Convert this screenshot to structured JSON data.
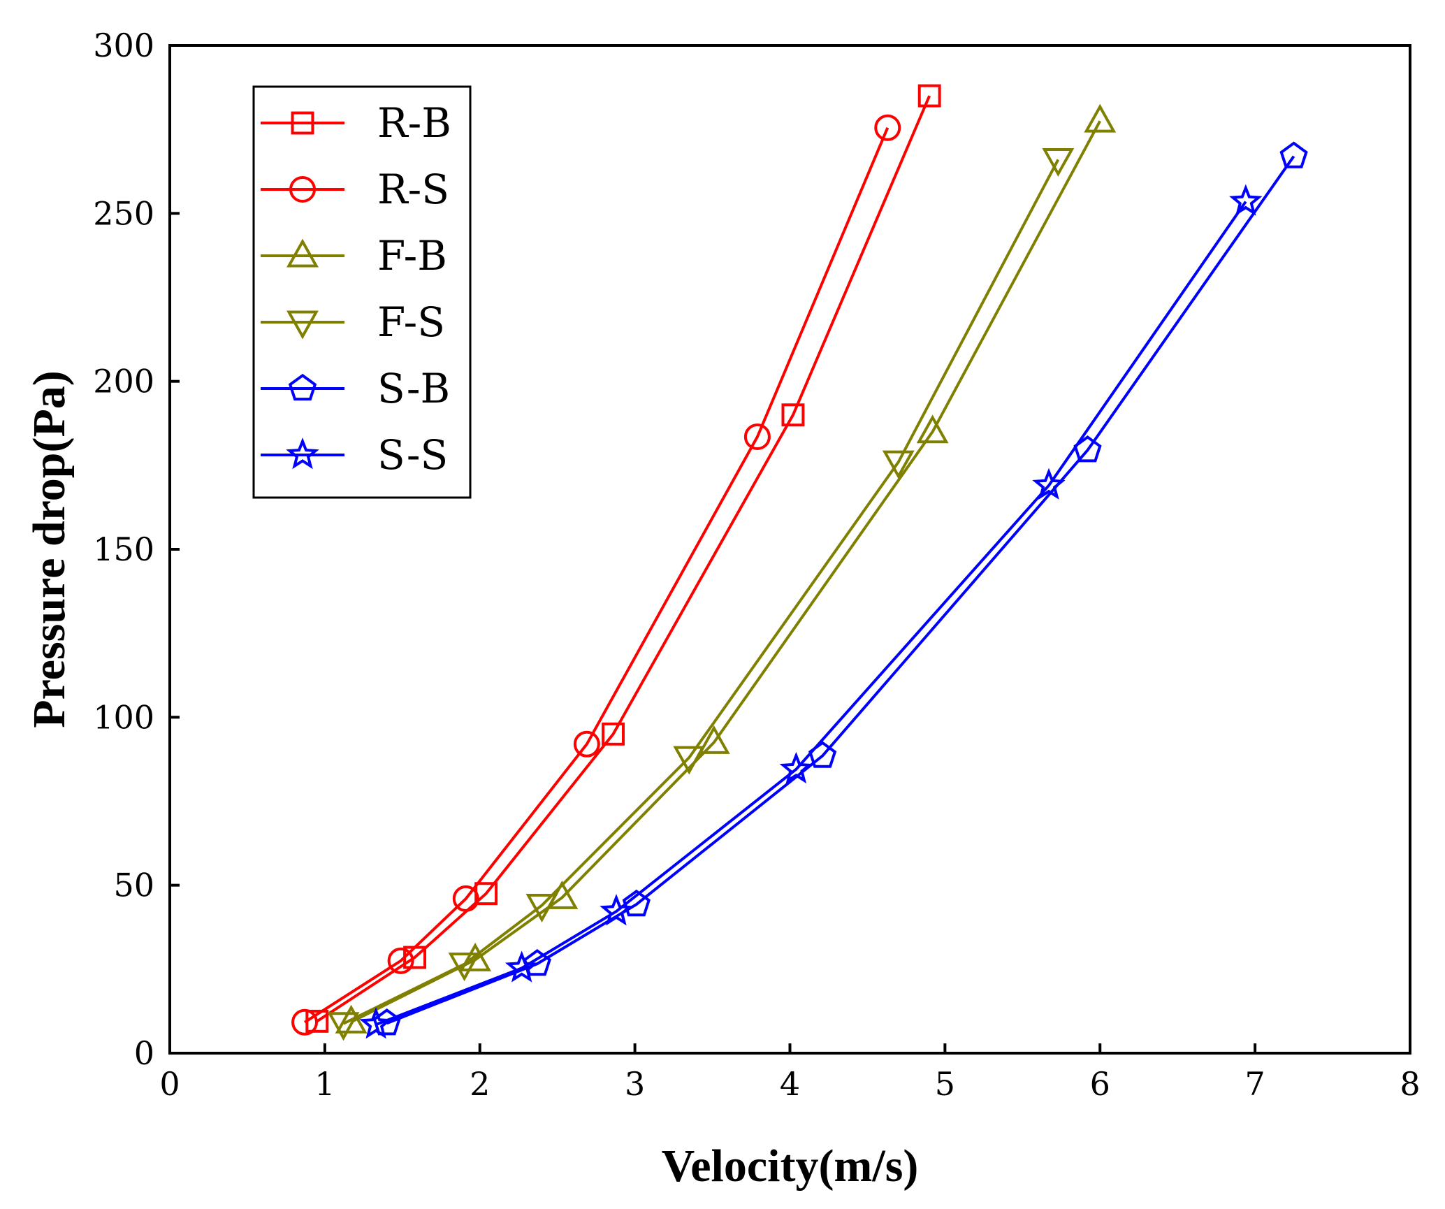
{
  "chart_data": {
    "type": "line",
    "title": "",
    "xlabel": "Velocity(m/s)",
    "ylabel": "Pressure drop(Pa)",
    "xlim": [
      0,
      8
    ],
    "ylim": [
      0,
      300
    ],
    "xticks": [
      0,
      1,
      2,
      3,
      4,
      5,
      6,
      7,
      8
    ],
    "yticks": [
      0,
      50,
      100,
      150,
      200,
      250,
      300
    ],
    "grid": false,
    "legend_position": "top-left",
    "series": [
      {
        "name": "R-B",
        "color": "#ff0000",
        "marker": "square",
        "x": [
          0.95,
          1.58,
          2.04,
          2.86,
          4.02,
          4.9
        ],
        "y": [
          9.5,
          28.5,
          47.5,
          95,
          190,
          285
        ]
      },
      {
        "name": "R-S",
        "color": "#ff0000",
        "marker": "circle",
        "x": [
          0.87,
          1.49,
          1.91,
          2.69,
          3.79,
          4.63
        ],
        "y": [
          9.2,
          27.5,
          46,
          92,
          183.5,
          275.5
        ]
      },
      {
        "name": "F-B",
        "color": "#808000",
        "marker": "triangle-up",
        "x": [
          1.17,
          1.97,
          2.53,
          3.51,
          4.92,
          6.0
        ],
        "y": [
          9.3,
          27.8,
          46.3,
          92.5,
          185,
          277.5
        ]
      },
      {
        "name": "F-S",
        "color": "#808000",
        "marker": "triangle-down",
        "x": [
          1.12,
          1.9,
          2.4,
          3.35,
          4.7,
          5.73
        ],
        "y": [
          8.8,
          26.5,
          44,
          88,
          176,
          266
        ]
      },
      {
        "name": "S-B",
        "color": "#0000ff",
        "marker": "pentagon",
        "x": [
          1.4,
          2.37,
          3.01,
          4.21,
          5.92,
          7.25
        ],
        "y": [
          8.9,
          26.6,
          44.3,
          88.5,
          179.5,
          267
        ]
      },
      {
        "name": "S-S",
        "color": "#0000ff",
        "marker": "star",
        "x": [
          1.33,
          2.27,
          2.88,
          4.04,
          5.67,
          6.94
        ],
        "y": [
          8.5,
          25.3,
          42.2,
          84.5,
          169,
          253.5
        ]
      }
    ]
  }
}
